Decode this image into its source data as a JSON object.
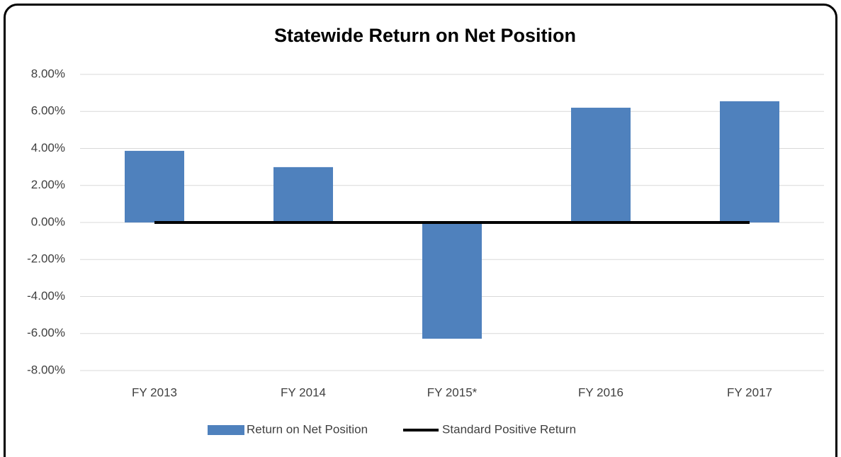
{
  "chart_data": {
    "type": "bar",
    "title": "Statewide Return on Net Position",
    "categories": [
      "FY 2013",
      "FY 2014",
      "FY 2015*",
      "FY 2016",
      "FY 2017"
    ],
    "series": [
      {
        "name": "Return on Net Position",
        "type": "bar",
        "color": "#4f81bd",
        "values": [
          3.87,
          2.99,
          -6.28,
          6.2,
          6.55
        ]
      },
      {
        "name": "Standard Positive Return",
        "type": "line",
        "color": "#000000",
        "values": [
          0,
          0,
          0,
          0,
          0
        ]
      }
    ],
    "ylim": [
      -8,
      8
    ],
    "yticks": [
      {
        "value": -8,
        "label": "-8.00%"
      },
      {
        "value": -6,
        "label": "-6.00%"
      },
      {
        "value": -4,
        "label": "-4.00%"
      },
      {
        "value": -2,
        "label": "-2.00%"
      },
      {
        "value": 0,
        "label": "0.00%"
      },
      {
        "value": 2,
        "label": "2.00%"
      },
      {
        "value": 4,
        "label": "4.00%"
      },
      {
        "value": 6,
        "label": "6.00%"
      },
      {
        "value": 8,
        "label": "8.00%"
      }
    ],
    "grid": true,
    "legend": "bottom"
  }
}
